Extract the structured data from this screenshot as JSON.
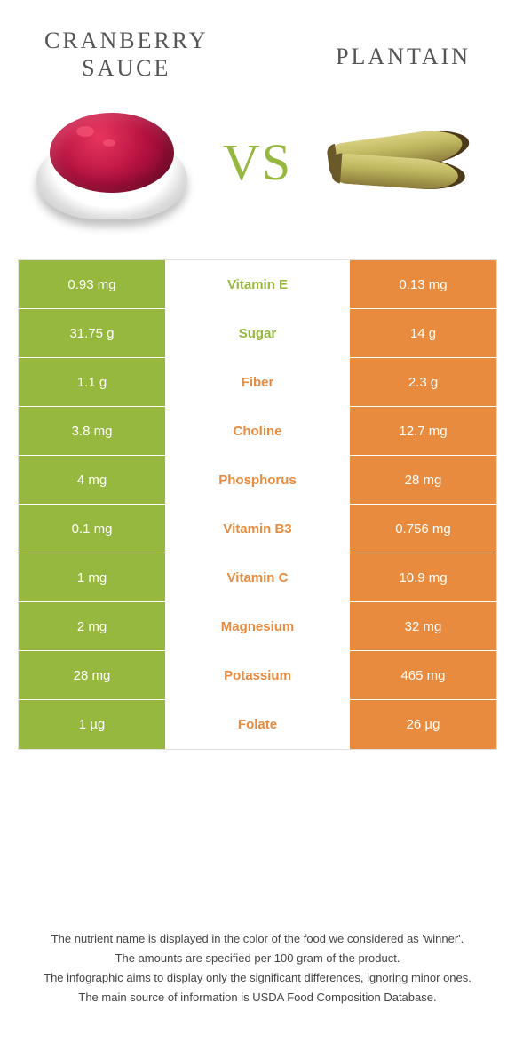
{
  "header": {
    "left_title_l1": "CRANBERRY",
    "left_title_l2": "SAUCE",
    "right_title": "PLANTAIN",
    "vs": "VS"
  },
  "colors": {
    "green": "#97b83f",
    "orange": "#e88b3e",
    "mid_green_text": "#97b83f",
    "mid_orange_text": "#e88b3e"
  },
  "rows": [
    {
      "left": "0.93 mg",
      "label": "Vitamin E",
      "right": "0.13 mg",
      "winner": "left"
    },
    {
      "left": "31.75 g",
      "label": "Sugar",
      "right": "14 g",
      "winner": "left"
    },
    {
      "left": "1.1 g",
      "label": "Fiber",
      "right": "2.3 g",
      "winner": "right"
    },
    {
      "left": "3.8 mg",
      "label": "Choline",
      "right": "12.7 mg",
      "winner": "right"
    },
    {
      "left": "4 mg",
      "label": "Phosphorus",
      "right": "28 mg",
      "winner": "right"
    },
    {
      "left": "0.1 mg",
      "label": "Vitamin B3",
      "right": "0.756 mg",
      "winner": "right"
    },
    {
      "left": "1 mg",
      "label": "Vitamin C",
      "right": "10.9 mg",
      "winner": "right"
    },
    {
      "left": "2 mg",
      "label": "Magnesium",
      "right": "32 mg",
      "winner": "right"
    },
    {
      "left": "28 mg",
      "label": "Potassium",
      "right": "465 mg",
      "winner": "right"
    },
    {
      "left": "1 µg",
      "label": "Folate",
      "right": "26 µg",
      "winner": "right"
    }
  ],
  "footer": {
    "l1": "The nutrient name is displayed in the color of the food we considered as 'winner'.",
    "l2": "The amounts are specified per 100 gram of the product.",
    "l3": "The infographic aims to display only the significant differences, ignoring minor ones.",
    "l4": "The main source of information is USDA Food Composition Database."
  }
}
